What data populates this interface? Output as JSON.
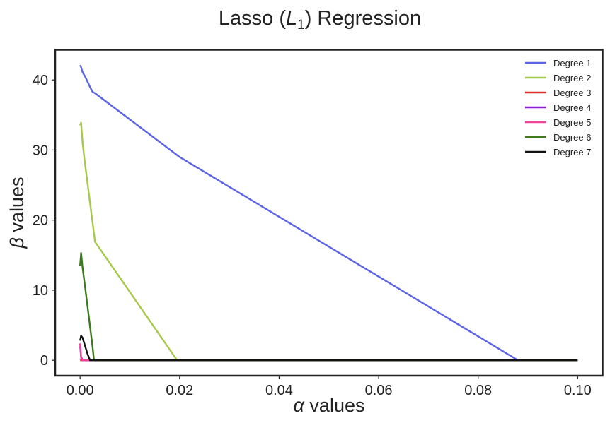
{
  "chart_data": {
    "type": "line",
    "title_main": "Lasso (",
    "title_var": "L",
    "title_sub": "1",
    "title_end": ") Regression",
    "xlabel_symbol": "α",
    "xlabel_text": " values",
    "ylabel_symbol": "β",
    "ylabel_text": " values",
    "xlim": [
      -0.005,
      0.105
    ],
    "ylim": [
      -2.2,
      44.3
    ],
    "xticks": [
      0.0,
      0.02,
      0.04,
      0.06,
      0.08,
      0.1
    ],
    "xtick_labels": [
      "0.00",
      "0.02",
      "0.04",
      "0.06",
      "0.08",
      "0.10"
    ],
    "yticks": [
      0,
      10,
      20,
      30,
      40
    ],
    "ytick_labels": [
      "0",
      "10",
      "20",
      "30",
      "40"
    ],
    "grid": false,
    "legend_position": "top-right",
    "series": [
      {
        "name": "Degree 1",
        "color": "#5b63e6",
        "x": [
          0.0,
          0.0002,
          0.0005,
          0.001,
          0.002,
          0.0025,
          0.003,
          0.02,
          0.088,
          0.1
        ],
        "y": [
          42.1,
          41.8,
          41.1,
          40.5,
          39.0,
          38.3,
          38.1,
          29.0,
          0.0,
          0.0
        ]
      },
      {
        "name": "Degree 2",
        "color": "#a6c94a",
        "x": [
          0.0,
          0.0002,
          0.0005,
          0.001,
          0.003,
          0.0195,
          0.1
        ],
        "y": [
          33.5,
          33.9,
          31.0,
          28.0,
          16.9,
          0.0,
          0.0
        ]
      },
      {
        "name": "Degree 3",
        "color": "#e03030",
        "x": [
          0.0,
          0.1
        ],
        "y": [
          0.0,
          0.0
        ]
      },
      {
        "name": "Degree 4",
        "color": "#8a1ed6",
        "x": [
          0.0,
          0.0002,
          0.0005,
          0.1
        ],
        "y": [
          2.0,
          0.5,
          0.0,
          0.0
        ]
      },
      {
        "name": "Degree 5",
        "color": "#f0459a",
        "x": [
          0.0,
          0.0002,
          0.0005,
          0.1
        ],
        "y": [
          2.4,
          0.3,
          0.0,
          0.0
        ]
      },
      {
        "name": "Degree 6",
        "color": "#3d7a1e",
        "x": [
          0.0,
          0.0002,
          0.0005,
          0.001,
          0.0025,
          0.0028,
          0.1
        ],
        "y": [
          13.5,
          15.3,
          13.2,
          10.5,
          2.0,
          0.0,
          0.0
        ]
      },
      {
        "name": "Degree 7",
        "color": "#111111",
        "x": [
          0.0,
          0.0002,
          0.0005,
          0.0015,
          0.002,
          0.1
        ],
        "y": [
          2.8,
          3.5,
          3.2,
          0.9,
          0.0,
          0.0
        ]
      }
    ]
  }
}
